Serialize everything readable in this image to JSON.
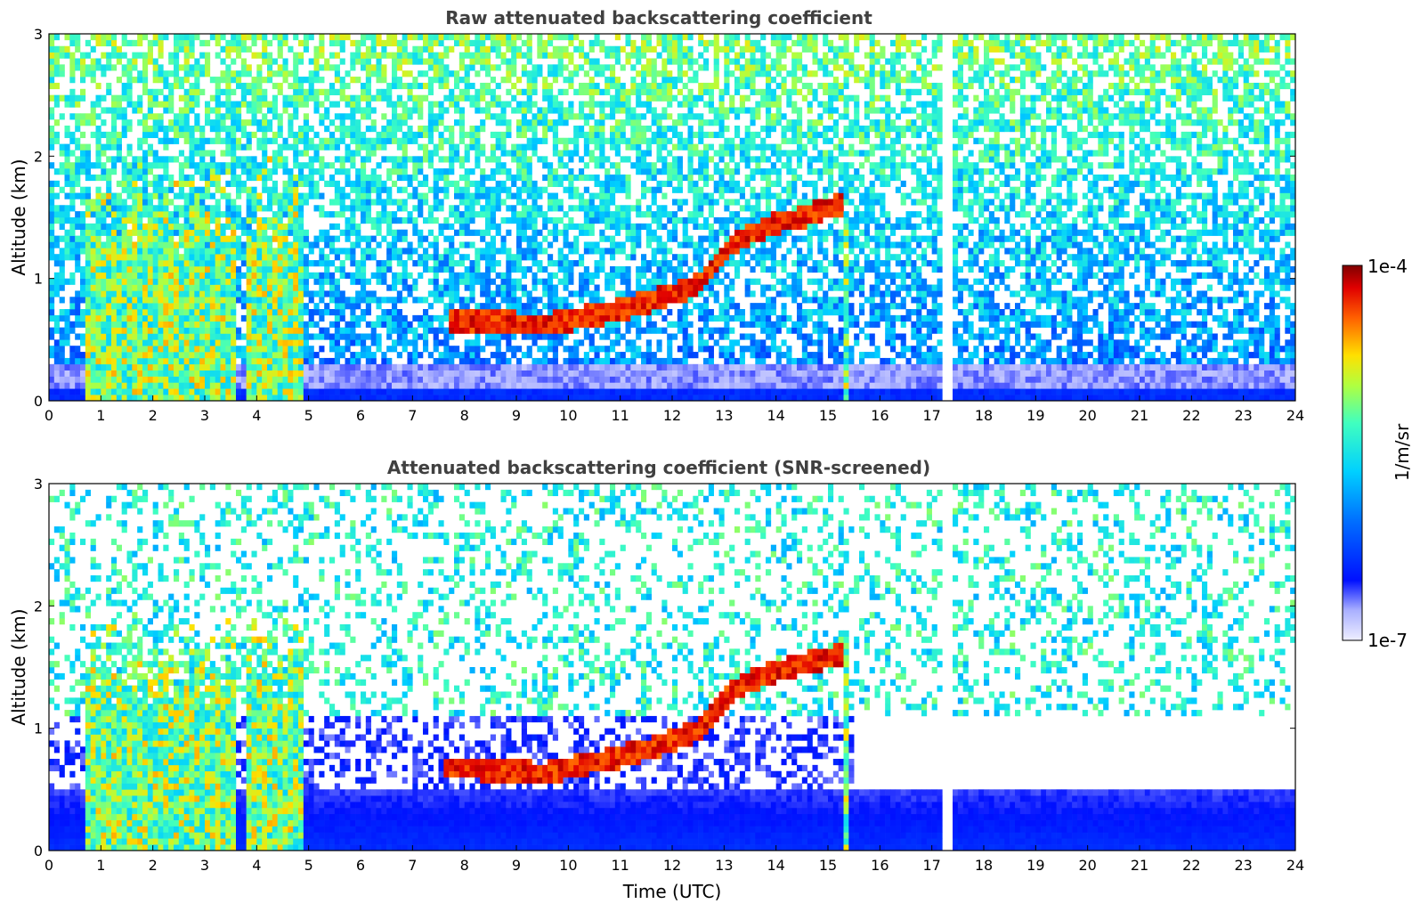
{
  "chart_data": [
    {
      "type": "heatmap",
      "title": "Raw attenuated backscattering coefficient",
      "xlabel": "",
      "ylabel": "Altitude (km)",
      "xlim": [
        0,
        24
      ],
      "ylim": [
        0,
        3
      ],
      "xticks": [
        "0",
        "1",
        "2",
        "3",
        "4",
        "5",
        "6",
        "7",
        "8",
        "9",
        "10",
        "11",
        "12",
        "13",
        "14",
        "15",
        "16",
        "17",
        "18",
        "19",
        "20",
        "21",
        "22",
        "23",
        "24"
      ],
      "yticks": [
        "0",
        "1",
        "2",
        "3"
      ],
      "colormap": "jet",
      "features": {
        "boundary_layer_top_km": 0.08,
        "cloud_layer": {
          "x": [
            7.7,
            8.5,
            9.5,
            10.5,
            11.5,
            12.5,
            13.2,
            14.0,
            14.5,
            15.0,
            15.3
          ],
          "y": [
            0.65,
            0.65,
            0.62,
            0.7,
            0.8,
            0.95,
            1.3,
            1.45,
            1.5,
            1.58,
            1.6
          ]
        },
        "precipitation_columns_utc": [
          [
            0.7,
            1.6
          ],
          [
            1.6,
            3.6
          ],
          [
            3.8,
            4.9
          ],
          [
            15.3,
            15.45
          ]
        ],
        "data_gap_utc": [
          17.2,
          17.4
        ]
      }
    },
    {
      "type": "heatmap",
      "title": "Attenuated backscattering coefficient (SNR-screened)",
      "xlabel": "Time (UTC)",
      "ylabel": "Altitude (km)",
      "xlim": [
        0,
        24
      ],
      "ylim": [
        0,
        3
      ],
      "xticks": [
        "0",
        "1",
        "2",
        "3",
        "4",
        "5",
        "6",
        "7",
        "8",
        "9",
        "10",
        "11",
        "12",
        "13",
        "14",
        "15",
        "16",
        "17",
        "18",
        "19",
        "20",
        "21",
        "22",
        "23",
        "24"
      ],
      "yticks": [
        "0",
        "1",
        "2",
        "3"
      ],
      "colormap": "jet",
      "features": {
        "boundary_layer_top_km": 0.5,
        "cloud_layer": {
          "x": [
            7.6,
            8.5,
            9.5,
            10.5,
            11.5,
            12.5,
            13.2,
            14.0,
            14.5,
            15.0,
            15.3
          ],
          "y": [
            0.68,
            0.66,
            0.63,
            0.72,
            0.82,
            0.98,
            1.32,
            1.47,
            1.52,
            1.58,
            1.6
          ]
        },
        "precipitation_columns_utc": [
          [
            0.7,
            1.6
          ],
          [
            1.6,
            3.6
          ],
          [
            3.8,
            4.9
          ],
          [
            15.3,
            15.45
          ]
        ],
        "data_gap_utc": [
          17.2,
          17.4
        ]
      }
    }
  ],
  "colorbar": {
    "label": "1/m/sr",
    "max_label": "1e-4",
    "min_label": "1e-7",
    "range": [
      1e-07,
      0.0001
    ],
    "scale": "log"
  }
}
